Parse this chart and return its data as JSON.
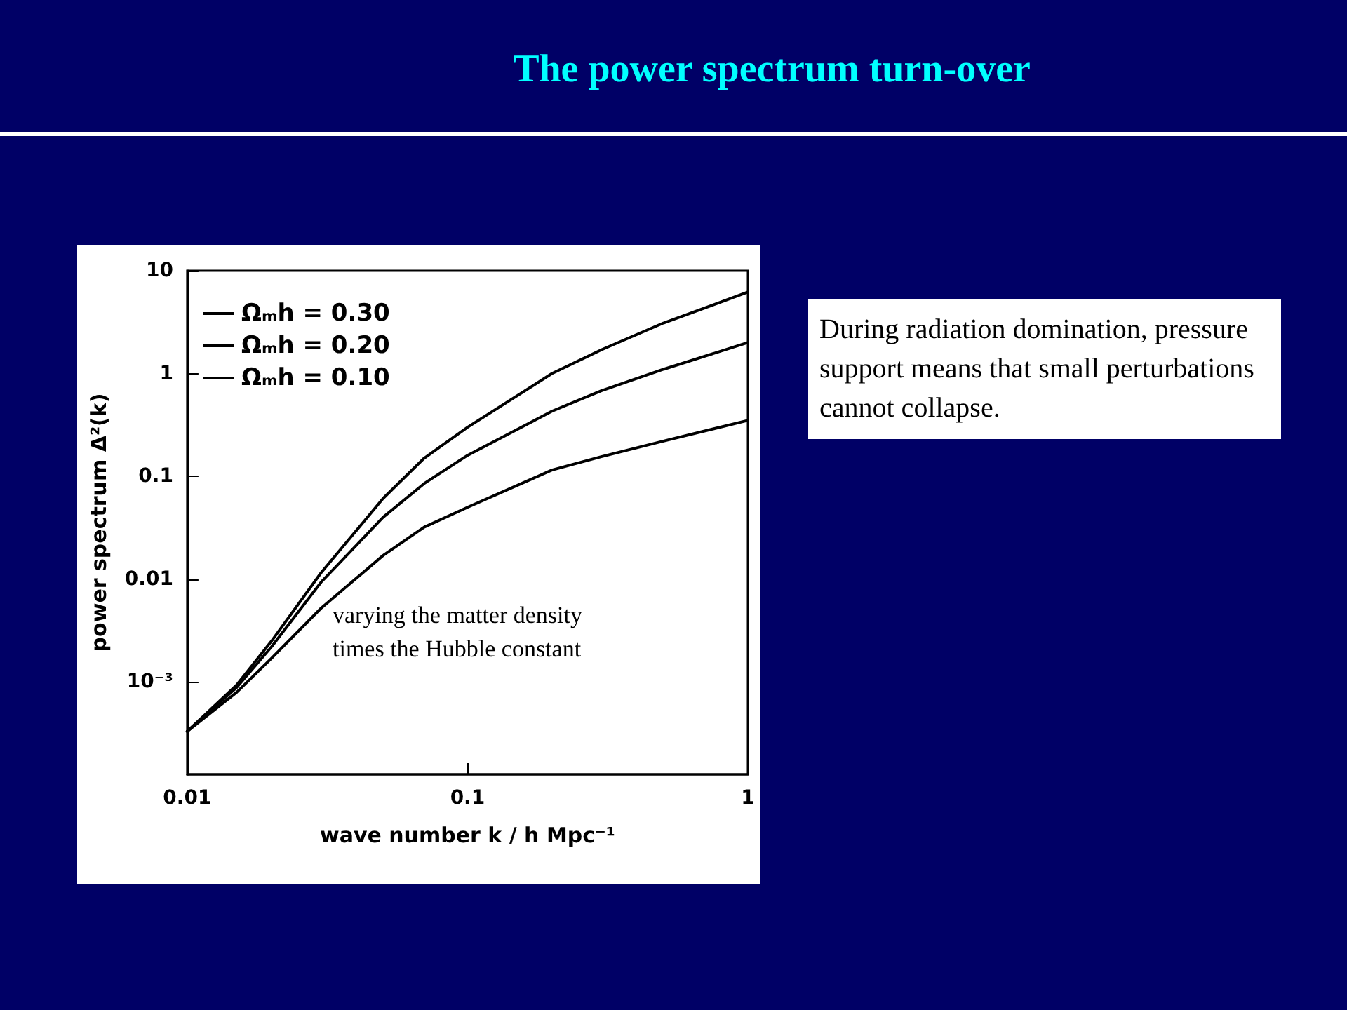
{
  "chart_data": {
    "type": "line",
    "title": "The power spectrum turn-over",
    "xlabel": "wave number k / h Mpc⁻¹",
    "ylabel": "power spectrum Δ²(k)",
    "log": "xy",
    "xlim": [
      0.01,
      1
    ],
    "xticks": [
      0.01,
      0.1,
      1
    ],
    "ylim": [
      0.000126,
      10
    ],
    "yticks": [
      {
        "value": 0.001,
        "label": "10⁻³"
      },
      0.01,
      0.1,
      1,
      10
    ],
    "grid": false,
    "legend": "top left",
    "marker": "none",
    "line_style": "solid",
    "x": [
      0.01,
      0.015,
      0.02,
      0.03,
      0.05,
      0.07,
      0.1,
      0.2,
      0.3,
      0.5,
      1
    ],
    "series": [
      {
        "name": "Ωₘh = 0.30",
        "color": "#000000",
        "values": [
          0.00033,
          0.00093,
          0.0025,
          0.0115,
          0.061,
          0.15,
          0.3,
          1.0,
          1.7,
          3.1,
          6.2
        ]
      },
      {
        "name": "Ωₘh = 0.20",
        "color": "#000000",
        "values": [
          0.00033,
          0.00088,
          0.0022,
          0.0093,
          0.04,
          0.085,
          0.16,
          0.43,
          0.68,
          1.1,
          2.0
        ]
      },
      {
        "name": "Ωₘh = 0.10",
        "color": "#000000",
        "values": [
          0.00033,
          0.00079,
          0.0017,
          0.0052,
          0.017,
          0.032,
          0.05,
          0.115,
          0.155,
          0.22,
          0.35
        ]
      }
    ],
    "annotations": [
      "varying the matter density\ntimes the Hubble constant",
      "During radiation domination, pressure support means that small perturbations cannot collapse."
    ]
  }
}
